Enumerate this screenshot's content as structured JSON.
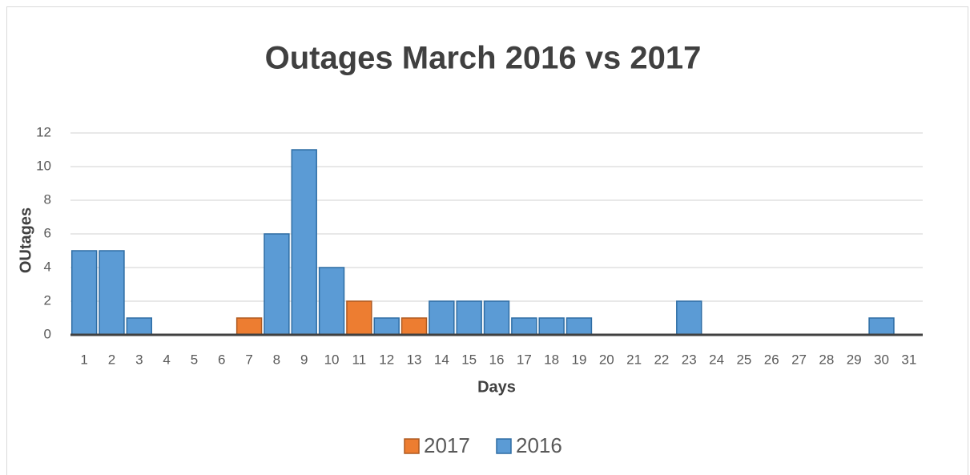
{
  "chart_data": {
    "type": "bar",
    "title": "Outages March 2016 vs 2017",
    "x_label": "Days",
    "y_label": "OUtages",
    "categories": [
      "1",
      "2",
      "3",
      "4",
      "5",
      "6",
      "7",
      "8",
      "9",
      "10",
      "11",
      "12",
      "13",
      "14",
      "15",
      "16",
      "17",
      "18",
      "19",
      "20",
      "21",
      "22",
      "23",
      "24",
      "25",
      "26",
      "27",
      "28",
      "29",
      "30",
      "31"
    ],
    "series": [
      {
        "name": "2017",
        "color": "#ed7d31",
        "stroke": "#ae5a21",
        "values": [
          0,
          0,
          0,
          0,
          0,
          0,
          1,
          0,
          0,
          0,
          2,
          0,
          1,
          0,
          0,
          0,
          0,
          0,
          0,
          0,
          0,
          0,
          0,
          0,
          0,
          0,
          0,
          0,
          0,
          0,
          0
        ]
      },
      {
        "name": "2016",
        "color": "#5b9bd5",
        "stroke": "#2e6da4",
        "values": [
          5,
          5,
          1,
          0,
          0,
          0,
          0,
          6,
          11,
          4,
          0,
          1,
          0,
          2,
          2,
          2,
          1,
          1,
          1,
          0,
          0,
          0,
          2,
          0,
          0,
          0,
          0,
          0,
          0,
          1,
          0
        ]
      }
    ],
    "ylim": [
      0,
      12
    ],
    "yticks": [
      0,
      2,
      4,
      6,
      8,
      10,
      12
    ],
    "grid": true,
    "legend": "bottom"
  }
}
